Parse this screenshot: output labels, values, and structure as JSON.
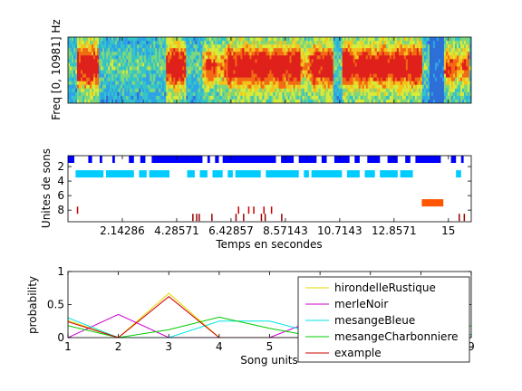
{
  "chart_data": [
    {
      "type": "heatmap",
      "panel": "spectrogram",
      "ylabel": "Freq [0, 10981] Hz",
      "y_range_hz": [
        0,
        10981
      ],
      "colormap": "jet",
      "description_of_activity": [
        {
          "t_start": 0.3,
          "t_end": 1.2,
          "level": "high"
        },
        {
          "t_start": 1.2,
          "t_end": 3.8,
          "level": "low"
        },
        {
          "t_start": 3.8,
          "t_end": 4.6,
          "level": "high"
        },
        {
          "t_start": 4.6,
          "t_end": 5.3,
          "level": "low"
        },
        {
          "t_start": 5.3,
          "t_end": 6.3,
          "level": "medium"
        },
        {
          "t_start": 6.3,
          "t_end": 9.1,
          "level": "high"
        },
        {
          "t_start": 9.1,
          "t_end": 9.6,
          "level": "medium"
        },
        {
          "t_start": 9.6,
          "t_end": 10.4,
          "level": "high"
        },
        {
          "t_start": 10.4,
          "t_end": 10.8,
          "level": "low"
        },
        {
          "t_start": 10.8,
          "t_end": 13.9,
          "level": "high"
        },
        {
          "t_start": 13.9,
          "t_end": 14.8,
          "level": "low"
        },
        {
          "t_start": 14.8,
          "t_end": 15.8,
          "level": "medium"
        }
      ]
    },
    {
      "type": "scatter",
      "panel": "units",
      "ylabel": "Unites de sons",
      "xlabel": "Temps en secondes",
      "xlim": [
        0,
        15.9
      ],
      "ylim": [
        0.5,
        9.6
      ],
      "yticks": [
        2,
        4,
        6,
        8
      ],
      "xticks": [
        2.14286,
        4.28571,
        6.42857,
        8.57143,
        10.7143,
        12.8571,
        15
      ],
      "xtick_labels": [
        "2.14286",
        "4.28571",
        "6.42857",
        "8.57143",
        "10.7143",
        "12.8571",
        "15"
      ],
      "rows": [
        {
          "unit": 1,
          "color": "#0000ff",
          "segments": [
            [
              0,
              0.25
            ],
            [
              0.8,
              0.95
            ],
            [
              1.25,
              1.35
            ],
            [
              1.75,
              1.85
            ],
            [
              2.4,
              2.6
            ],
            [
              2.85,
              3.05
            ],
            [
              3.3,
              5.3
            ],
            [
              5.5,
              5.6
            ],
            [
              5.8,
              5.95
            ],
            [
              6.1,
              8.2
            ],
            [
              8.4,
              8.9
            ],
            [
              9.1,
              9.8
            ],
            [
              10.0,
              10.2
            ],
            [
              10.5,
              11.1
            ],
            [
              11.3,
              11.5
            ],
            [
              11.8,
              12.3
            ],
            [
              12.6,
              13.0
            ],
            [
              13.3,
              13.5
            ],
            [
              13.7,
              14.7
            ],
            [
              15.1,
              15.3
            ],
            [
              15.5,
              15.6
            ]
          ]
        },
        {
          "unit": 3,
          "color": "#00ccff",
          "segments": [
            [
              0.3,
              1.4
            ],
            [
              1.5,
              2.6
            ],
            [
              2.8,
              3.1
            ],
            [
              3.2,
              4.0
            ],
            [
              4.7,
              5.0
            ],
            [
              5.2,
              5.5
            ],
            [
              5.7,
              6.1
            ],
            [
              6.3,
              6.5
            ],
            [
              6.6,
              7.6
            ],
            [
              7.8,
              9.1
            ],
            [
              9.3,
              9.5
            ],
            [
              9.6,
              10.8
            ],
            [
              11.0,
              11.5
            ],
            [
              11.7,
              12.1
            ],
            [
              12.3,
              13.0
            ],
            [
              13.1,
              13.6
            ],
            [
              15.3,
              15.5
            ]
          ]
        },
        {
          "unit": 7,
          "color": "#ff5500",
          "segments": [
            [
              13.95,
              14.8
            ]
          ]
        },
        {
          "unit": 8,
          "color": "#cc0000",
          "segments": [
            [
              0.35,
              0.38
            ],
            [
              6.7,
              6.73
            ],
            [
              7.1,
              7.13
            ],
            [
              7.3,
              7.33
            ],
            [
              7.7,
              7.73
            ],
            [
              8.0,
              8.03
            ]
          ]
        },
        {
          "unit": 9,
          "color": "#990000",
          "segments": [
            [
              4.9,
              4.93
            ],
            [
              5.05,
              5.08
            ],
            [
              5.15,
              5.18
            ],
            [
              5.65,
              5.68
            ],
            [
              6.6,
              6.63
            ],
            [
              6.9,
              6.93
            ],
            [
              7.6,
              7.63
            ],
            [
              7.75,
              7.78
            ],
            [
              8.4,
              8.43
            ],
            [
              15.4,
              15.43
            ],
            [
              15.6,
              15.63
            ]
          ]
        }
      ]
    },
    {
      "type": "line",
      "panel": "probability",
      "xlabel": "Song units",
      "ylabel": "probability",
      "xlim": [
        1,
        9
      ],
      "ylim": [
        0,
        1
      ],
      "xticks": [
        1,
        2,
        3,
        4,
        5,
        6,
        7,
        8,
        9
      ],
      "yticks": [
        0,
        0.5,
        1
      ],
      "ytick_labels": [
        "0",
        "0.5",
        "1"
      ],
      "x": [
        1,
        2,
        3,
        4,
        5,
        6,
        7,
        8,
        9
      ],
      "series": [
        {
          "name": "hirondelleRustique",
          "color": "#e6d800",
          "values": [
            0.26,
            0.0,
            0.67,
            0.0,
            0.0,
            0.0,
            0.0,
            0.0,
            0.0
          ]
        },
        {
          "name": "merleNoir",
          "color": "#cc00cc",
          "values": [
            0.0,
            0.35,
            0.0,
            0.0,
            0.0,
            0.3,
            0.0,
            0.0,
            0.0
          ]
        },
        {
          "name": "mesangeBleue",
          "color": "#00e6e6",
          "values": [
            0.3,
            0.0,
            0.0,
            0.25,
            0.25,
            0.05,
            0.1,
            0.0,
            0.05
          ]
        },
        {
          "name": "mesangeCharbonniere",
          "color": "#00cc00",
          "values": [
            0.18,
            0.0,
            0.12,
            0.31,
            0.14,
            0.0,
            0.0,
            0.0,
            0.18
          ]
        },
        {
          "name": "example",
          "color": "#cc0000",
          "values": [
            0.24,
            0.0,
            0.62,
            0.0,
            0.0,
            0.0,
            0.0,
            0.0,
            0.0
          ]
        }
      ],
      "legend_position": "right"
    }
  ]
}
